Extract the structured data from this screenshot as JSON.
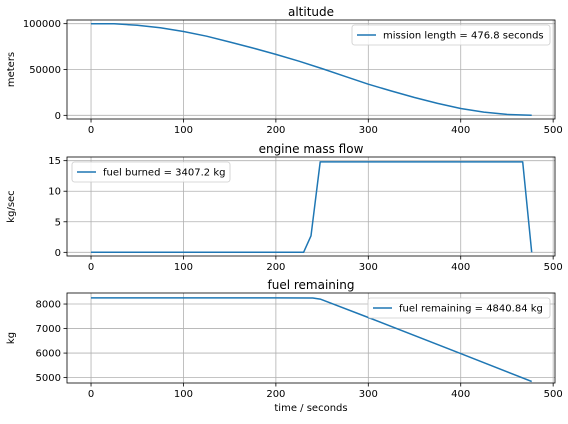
{
  "figure": {
    "background": "#ffffff",
    "line_color": "#1f77b4",
    "grid_color": "#b0b0b0"
  },
  "chart_data": [
    {
      "type": "line",
      "title": "altitude",
      "xlabel": "",
      "ylabel": "meters",
      "xlim": [
        -26,
        502
      ],
      "ylim": [
        -4000,
        104000
      ],
      "xticks": [
        0,
        100,
        200,
        300,
        400,
        500
      ],
      "yticks": [
        0,
        50000,
        100000
      ],
      "ytick_labels": [
        "0",
        "50000",
        "100000"
      ],
      "grid": true,
      "legend_position": "upper right",
      "series": [
        {
          "name": "mission length = 476.8 seconds",
          "x": [
            0,
            25,
            50,
            75,
            100,
            125,
            150,
            175,
            200,
            225,
            250,
            275,
            300,
            325,
            350,
            375,
            400,
            425,
            450,
            476.8
          ],
          "y": [
            100000,
            99800,
            98300,
            95500,
            91500,
            86300,
            80000,
            73500,
            66500,
            59000,
            51000,
            42500,
            34000,
            26500,
            19500,
            13000,
            7500,
            3500,
            1000,
            0
          ]
        }
      ]
    },
    {
      "type": "line",
      "title": "engine mass flow",
      "xlabel": "",
      "ylabel": "kg/sec",
      "xlim": [
        -26,
        502
      ],
      "ylim": [
        -0.6,
        15.6
      ],
      "xticks": [
        0,
        100,
        200,
        300,
        400,
        500
      ],
      "yticks": [
        0,
        5,
        10,
        15
      ],
      "ytick_labels": [
        "0",
        "5",
        "10",
        "15"
      ],
      "grid": true,
      "legend_position": "upper left",
      "series": [
        {
          "name": "fuel burned = 3407.2 kg",
          "x": [
            0,
            100,
            200,
            230,
            238,
            248,
            300,
            400,
            467,
            476.8
          ],
          "y": [
            0,
            0,
            0,
            0,
            2.7,
            14.8,
            14.8,
            14.8,
            14.8,
            0
          ]
        }
      ]
    },
    {
      "type": "line",
      "title": "fuel remaining",
      "xlabel": "time / seconds",
      "ylabel": "kg",
      "xlim": [
        -26,
        502
      ],
      "ylim": [
        4780,
        8450
      ],
      "xticks": [
        0,
        100,
        200,
        300,
        400,
        500
      ],
      "yticks": [
        5000,
        6000,
        7000,
        8000
      ],
      "ytick_labels": [
        "5000",
        "6000",
        "7000",
        "8000"
      ],
      "grid": true,
      "legend_position": "upper right",
      "series": [
        {
          "name": "fuel remaining = 4840.84 kg",
          "x": [
            0,
            100,
            200,
            240,
            248,
            300,
            400,
            476.8
          ],
          "y": [
            8250,
            8250,
            8250,
            8248,
            8200,
            7450,
            5980,
            4841
          ]
        }
      ]
    }
  ]
}
